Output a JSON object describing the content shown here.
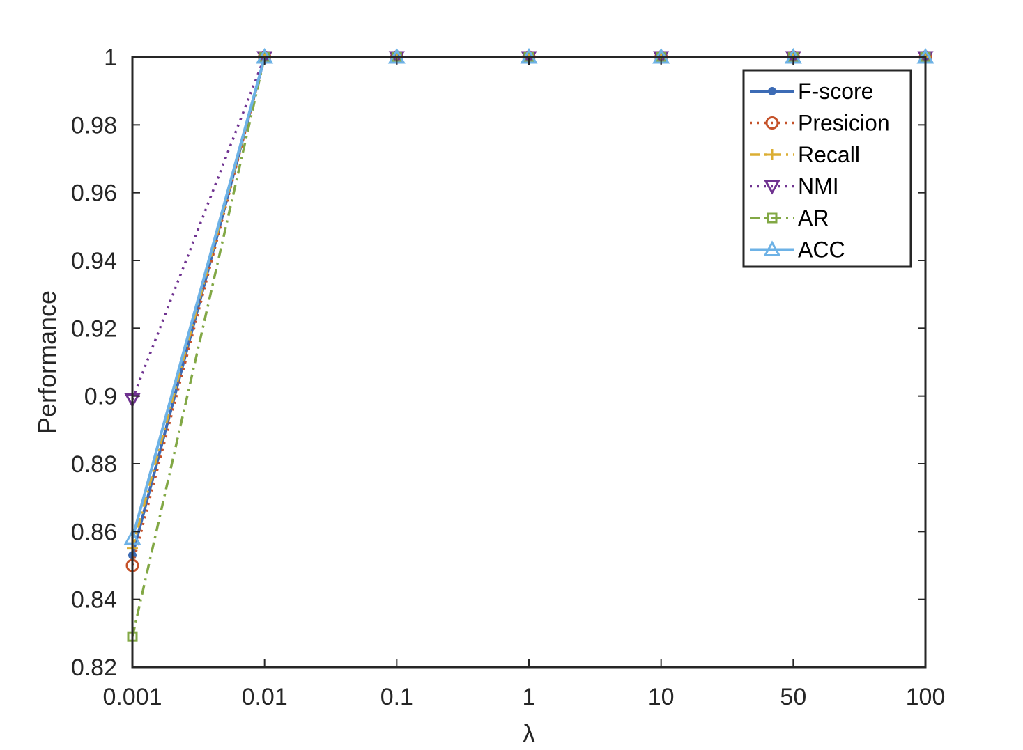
{
  "chart_data": {
    "type": "line",
    "title": "",
    "xlabel": "λ",
    "ylabel": "Performance",
    "categories": [
      "0.001",
      "0.01",
      "0.1",
      "1",
      "10",
      "50",
      "100"
    ],
    "ylim": [
      0.82,
      1
    ],
    "yticks": [
      "0.82",
      "0.84",
      "0.86",
      "0.88",
      "0.9",
      "0.92",
      "0.94",
      "0.96",
      "0.98",
      "1"
    ],
    "legend_position": "top-right",
    "grid": false,
    "series": [
      {
        "name": "F-score",
        "color": "#3C6BB5",
        "line": "solid",
        "marker": "dot",
        "values": [
          0.853,
          1,
          1,
          1,
          1,
          1,
          1
        ]
      },
      {
        "name": "Presicion",
        "color": "#C5522A",
        "line": "dotted",
        "marker": "circle",
        "values": [
          0.85,
          1,
          1,
          1,
          1,
          1,
          1
        ]
      },
      {
        "name": "Recall",
        "color": "#DBAE33",
        "line": "dashdot",
        "marker": "plus",
        "values": [
          0.855,
          1,
          1,
          1,
          1,
          1,
          1
        ]
      },
      {
        "name": "NMI",
        "color": "#6F3290",
        "line": "dotted",
        "marker": "triangle-down",
        "values": [
          0.899,
          1,
          1,
          1,
          1,
          1,
          1
        ]
      },
      {
        "name": "AR",
        "color": "#82A845",
        "line": "dashdot",
        "marker": "square",
        "values": [
          0.829,
          1,
          1,
          1,
          1,
          1,
          1
        ]
      },
      {
        "name": "ACC",
        "color": "#6DB2E6",
        "line": "solid",
        "marker": "triangle-up",
        "values": [
          0.858,
          1,
          1,
          1,
          1,
          1,
          1
        ]
      }
    ]
  }
}
